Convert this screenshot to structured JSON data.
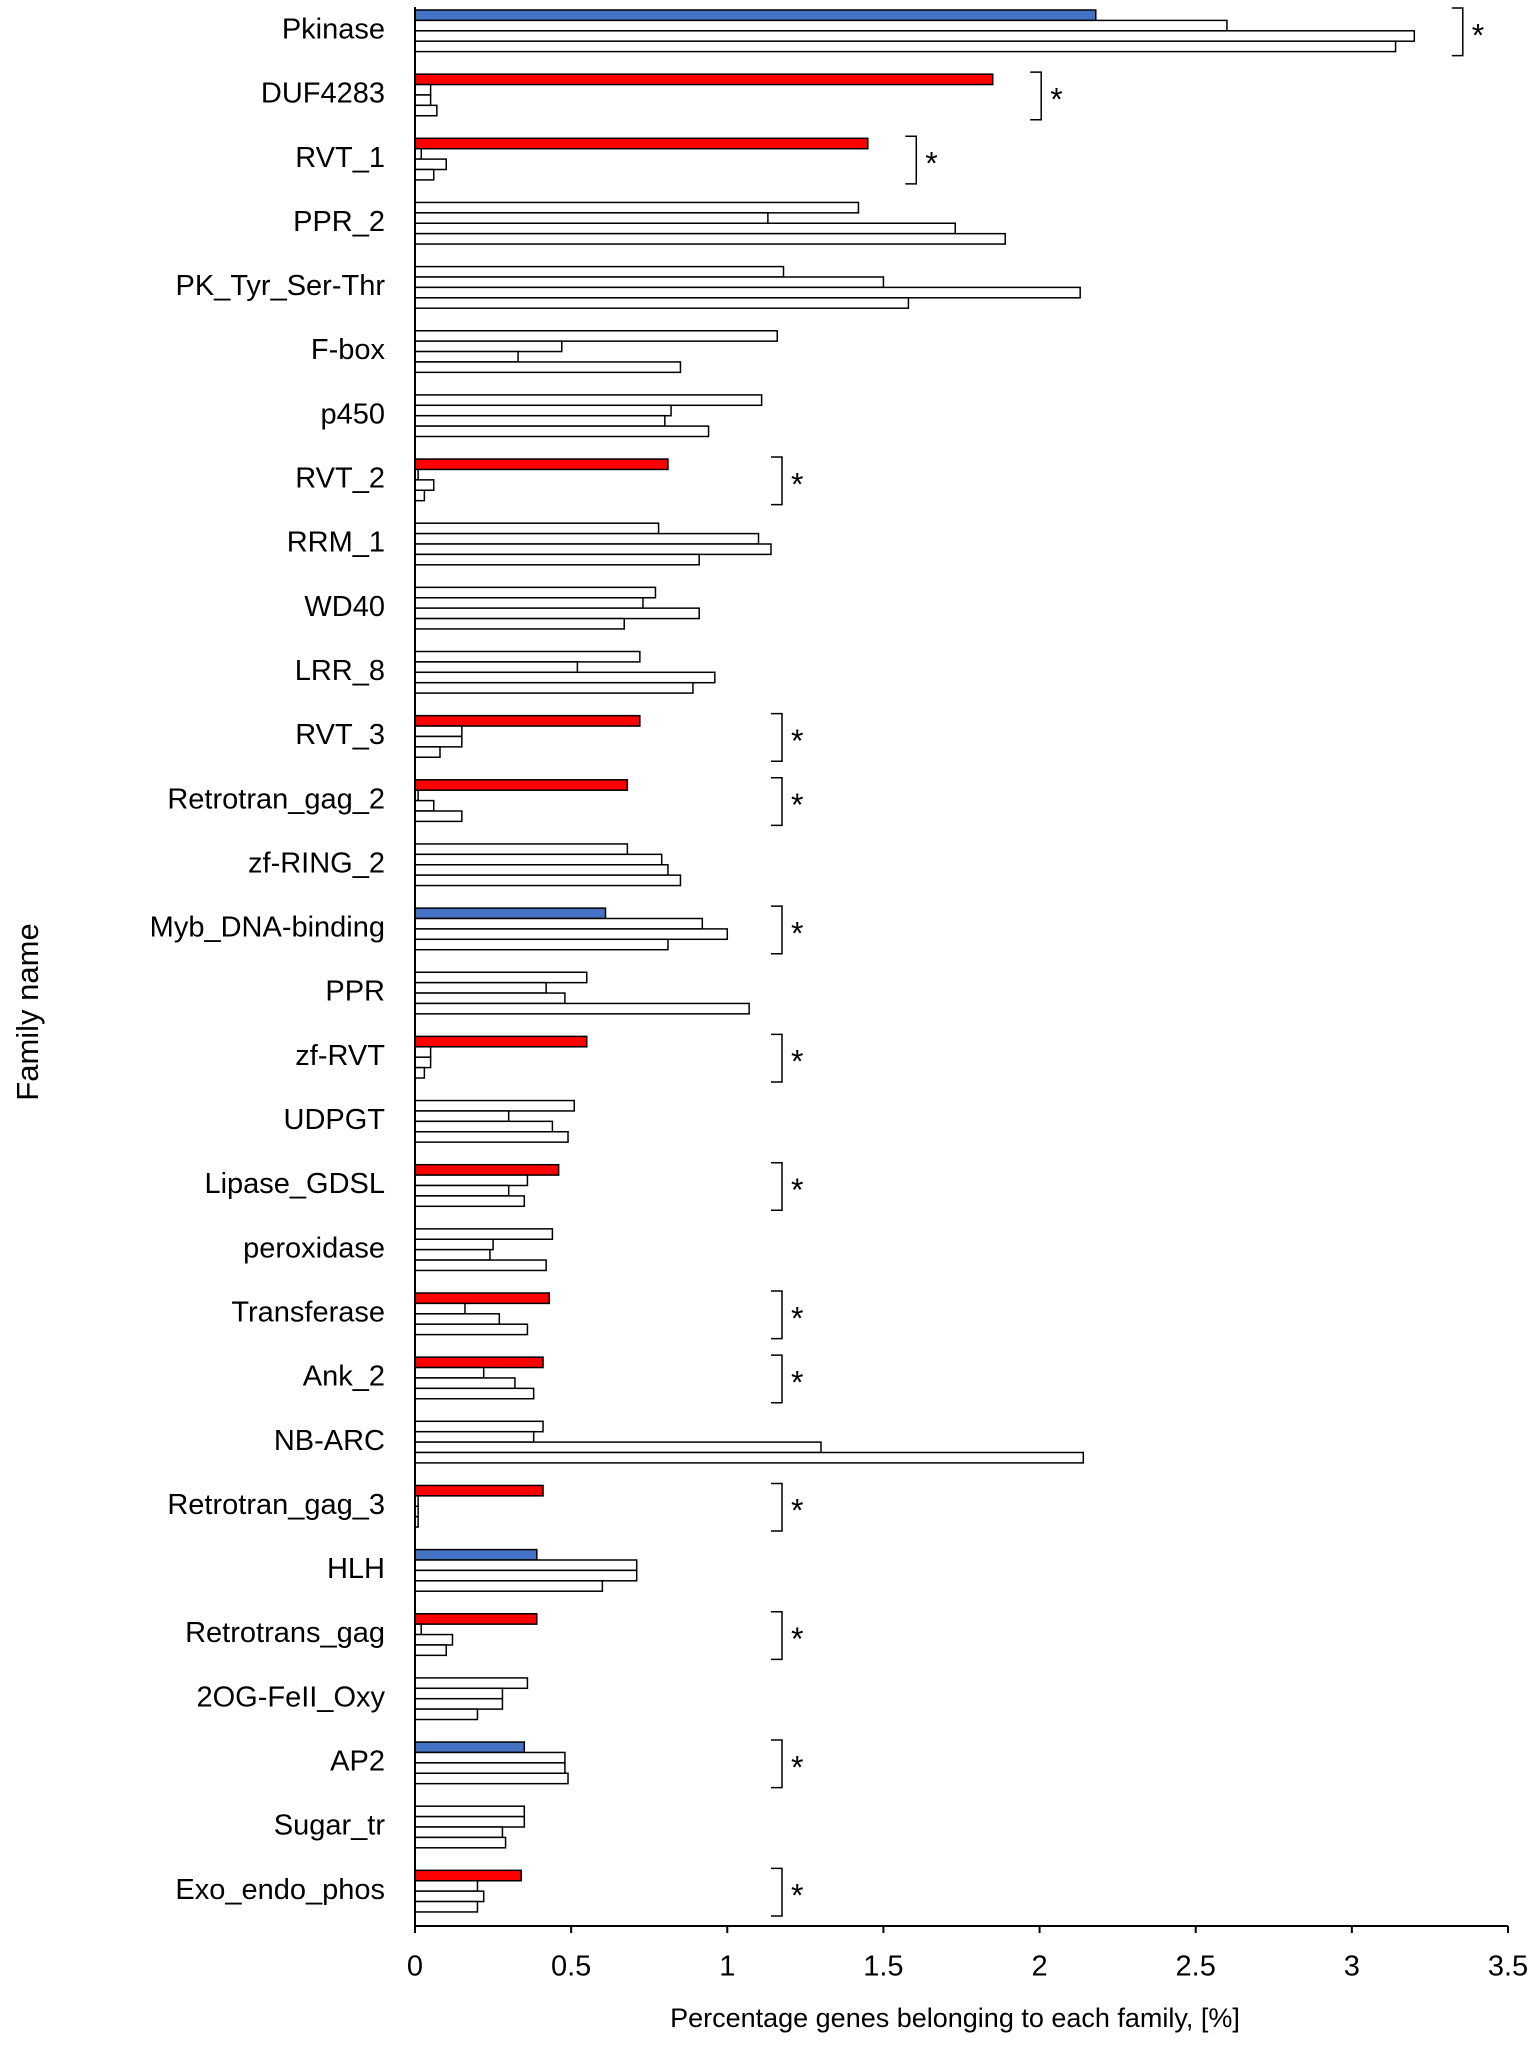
{
  "chart_data": {
    "type": "bar",
    "orientation": "horizontal",
    "x_label": "Percentage genes belonging to each family, [%]",
    "y_label": "Family name",
    "categories": [
      "Pkinase",
      "DUF4283",
      "RVT_1",
      "PPR_2",
      "PK_Tyr_Ser-Thr",
      "F-box",
      "p450",
      "RVT_2",
      "RRM_1",
      "WD40",
      "LRR_8",
      "RVT_3",
      "Retrotran_gag_2",
      "zf-RING_2",
      "Myb_DNA-binding",
      "PPR",
      "zf-RVT",
      "UDPGT",
      "Lipase_GDSL",
      "peroxidase",
      "Transferase",
      "Ank_2",
      "NB-ARC",
      "Retrotran_gag_3",
      "HLH",
      "Retrotrans_gag",
      "2OG-FeII_Oxy",
      "AP2",
      "Sugar_tr",
      "Exo_endo_phos"
    ],
    "series": [
      {
        "values": [
          2.18,
          1.85,
          1.45,
          1.42,
          1.18,
          1.16,
          1.11,
          0.81,
          0.78,
          0.77,
          0.72,
          0.72,
          0.68,
          0.68,
          0.61,
          0.55,
          0.55,
          0.51,
          0.46,
          0.44,
          0.43,
          0.41,
          0.41,
          0.41,
          0.39,
          0.39,
          0.36,
          0.35,
          0.35,
          0.34
        ],
        "colors": [
          "#4472c4",
          "#ff0000",
          "#ff0000",
          "#ffffff",
          "#ffffff",
          "#ffffff",
          "#ffffff",
          "#ff0000",
          "#ffffff",
          "#ffffff",
          "#ffffff",
          "#ff0000",
          "#ff0000",
          "#ffffff",
          "#4472c4",
          "#ffffff",
          "#ff0000",
          "#ffffff",
          "#ff0000",
          "#ffffff",
          "#ff0000",
          "#ff0000",
          "#ffffff",
          "#ff0000",
          "#4472c4",
          "#ff0000",
          "#ffffff",
          "#4472c4",
          "#ffffff",
          "#ff0000"
        ]
      },
      {
        "color": "#ffffff",
        "values": [
          2.6,
          0.05,
          0.02,
          1.13,
          1.5,
          0.47,
          0.82,
          0.01,
          1.1,
          0.73,
          0.52,
          0.15,
          0.01,
          0.79,
          0.92,
          0.42,
          0.05,
          0.3,
          0.36,
          0.25,
          0.16,
          0.22,
          0.38,
          0.01,
          0.71,
          0.02,
          0.28,
          0.48,
          0.35,
          0.2
        ]
      },
      {
        "color": "#ffffff",
        "values": [
          3.2,
          0.05,
          0.1,
          1.73,
          2.13,
          0.33,
          0.8,
          0.06,
          1.14,
          0.91,
          0.96,
          0.15,
          0.06,
          0.81,
          1.0,
          0.48,
          0.05,
          0.44,
          0.3,
          0.24,
          0.27,
          0.32,
          1.3,
          0.01,
          0.71,
          0.12,
          0.28,
          0.48,
          0.28,
          0.22
        ]
      },
      {
        "color": "#ffffff",
        "values": [
          3.14,
          0.07,
          0.06,
          1.89,
          1.58,
          0.85,
          0.94,
          0.03,
          0.91,
          0.67,
          0.89,
          0.08,
          0.15,
          0.85,
          0.81,
          1.07,
          0.03,
          0.49,
          0.35,
          0.42,
          0.36,
          0.38,
          2.14,
          0.01,
          0.6,
          0.1,
          0.2,
          0.49,
          0.29,
          0.2
        ]
      }
    ],
    "significance": [
      "*",
      "*",
      "*",
      null,
      null,
      null,
      null,
      "*",
      null,
      null,
      null,
      "*",
      "*",
      null,
      "*",
      null,
      "*",
      null,
      "*",
      null,
      "*",
      "*",
      null,
      "*",
      null,
      "*",
      null,
      "*",
      null,
      "*"
    ],
    "xlim": [
      0,
      3.5
    ],
    "xticks": [
      0,
      0.5,
      1,
      1.5,
      2,
      2.5,
      3,
      3.5
    ],
    "bar_stroke": "#000000"
  }
}
